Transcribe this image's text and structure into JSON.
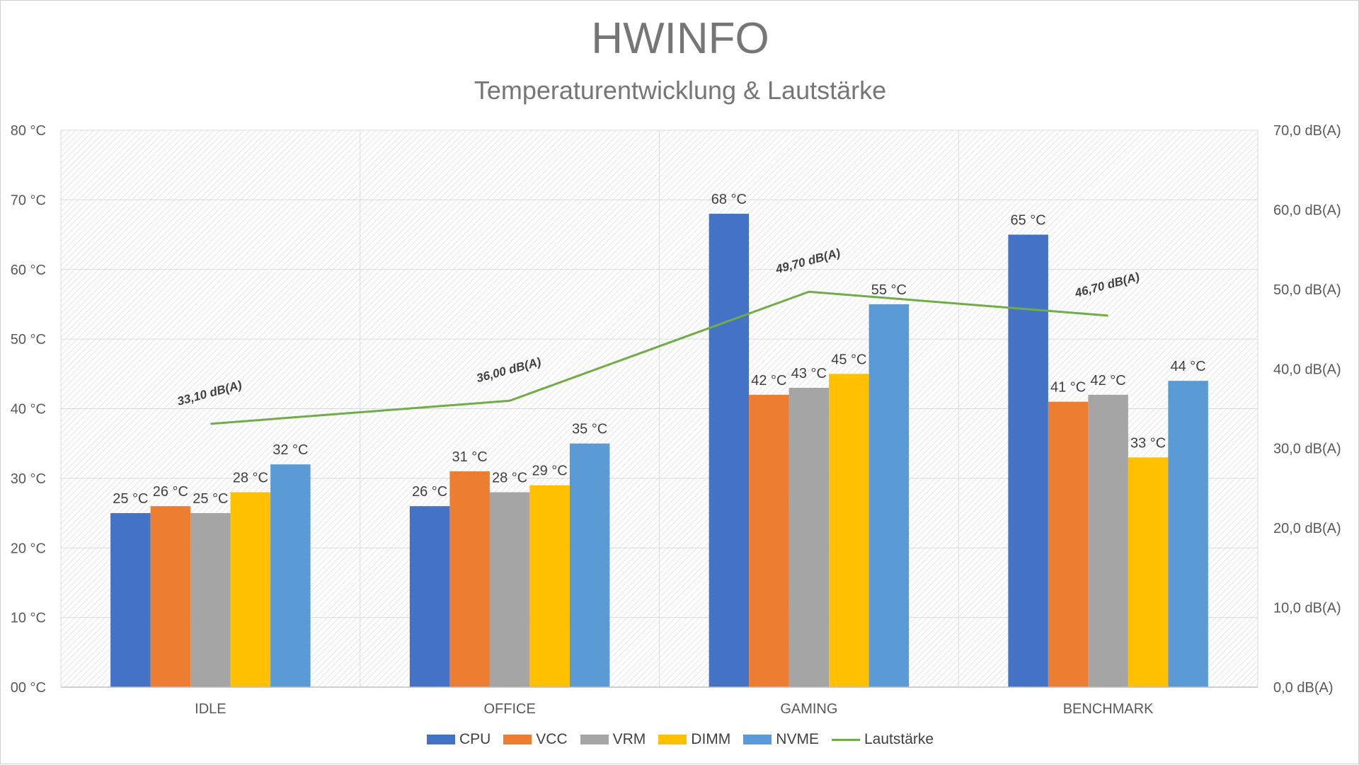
{
  "chart_data": {
    "type": "bar",
    "title": "HWINFO",
    "subtitle": "Temperaturentwicklung & Lautstärke",
    "categories": [
      "IDLE",
      "OFFICE",
      "GAMING",
      "BENCHMARK"
    ],
    "series": [
      {
        "name": "CPU",
        "color": "#4472C4",
        "values": [
          25,
          26,
          68,
          65
        ],
        "labels": [
          "25 °C",
          "26 °C",
          "68 °C",
          "65 °C"
        ]
      },
      {
        "name": "VCC",
        "color": "#ED7D31",
        "values": [
          26,
          31,
          42,
          41
        ],
        "labels": [
          "26 °C",
          "31 °C",
          "42 °C",
          "41 °C"
        ]
      },
      {
        "name": "VRM",
        "color": "#A5A5A5",
        "values": [
          25,
          28,
          43,
          42
        ],
        "labels": [
          "25 °C",
          "28 °C",
          "43 °C",
          "42 °C"
        ]
      },
      {
        "name": "DIMM",
        "color": "#FFC000",
        "values": [
          28,
          29,
          45,
          33
        ],
        "labels": [
          "28 °C",
          "29 °C",
          "45 °C",
          "33 °C"
        ]
      },
      {
        "name": "NVME",
        "color": "#5B9BD5",
        "values": [
          32,
          35,
          55,
          44
        ],
        "labels": [
          "32 °C",
          "35 °C",
          "55 °C",
          "44 °C"
        ]
      }
    ],
    "line_series": {
      "name": "Lautstärke",
      "type": "line",
      "axis": "secondary",
      "color": "#70AD47",
      "values": [
        33.1,
        36.0,
        49.7,
        46.7
      ],
      "labels": [
        "33,10 dB(A)",
        "36,00 dB(A)",
        "49,70 dB(A)",
        "46,70 dB(A)"
      ]
    },
    "ylim": [
      0,
      80
    ],
    "y2lim": [
      0,
      70
    ],
    "yticks": [
      "00 °C",
      "10 °C",
      "20 °C",
      "30 °C",
      "40 °C",
      "50 °C",
      "60 °C",
      "70 °C",
      "80 °C"
    ],
    "y2ticks": [
      "0,0  dB(A)",
      "10,0  dB(A)",
      "20,0  dB(A)",
      "30,0  dB(A)",
      "40,0  dB(A)",
      "50,0  dB(A)",
      "60,0  dB(A)",
      "70,0  dB(A)"
    ],
    "legend_position": "bottom"
  }
}
